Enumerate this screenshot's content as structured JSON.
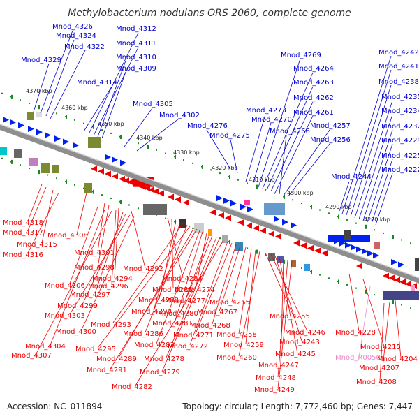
{
  "title": "Methylobacterium nodulans ORS 2060, complete genome",
  "footer": {
    "accession": "Accession: NC_011894",
    "summary": "Topology: circular; Length: 7,772,460 bp; Genes: 7,447"
  },
  "colors": {
    "forward_label": "#0000cc",
    "reverse_label": "#ee0000",
    "rna_label": "#ee88cc",
    "forward_feature": "#0022ee",
    "reverse_feature": "#ee0000",
    "backbone": "#888888",
    "tick": "#1a8a1a"
  },
  "kbp_marks": [
    "4370 kbp",
    "4360 kbp",
    "4350 kbp",
    "4340 kbp",
    "4330 kbp",
    "4320 kbp",
    "4310 kbp",
    "4300 kbp",
    "4290 kbp",
    "4280 kbp"
  ],
  "top_labels": [
    "Mnod_4326",
    "Mnod_4324",
    "Mnod_4322",
    "Mnod_4329",
    "Mnod_4312",
    "Mnod_4311",
    "Mnod_4310",
    "Mnod_4309",
    "Mnod_4314",
    "Mnod_4305",
    "Mnod_4302",
    "Mnod_4276",
    "Mnod_4275",
    "Mnod_4273",
    "Mnod_4270",
    "Mnod_4269",
    "Mnod_4264",
    "Mnod_4263",
    "Mnod_4262",
    "Mnod_4261",
    "Mnod_4266",
    "Mnod_4257",
    "Mnod_4256",
    "Mnod_4242",
    "Mnod_4241",
    "Mnod_4238",
    "Mnod_4235",
    "Mnod_4234",
    "Mnod_4232",
    "Mnod_4229",
    "Mnod_4225",
    "Mnod_4222",
    "Mnod_4244"
  ],
  "bottom_labels": [
    "Mnod_4318",
    "Mnod_4317",
    "Mnod_4315",
    "Mnod_4316",
    "Mnod_4308",
    "Mnod_4301",
    "Mnod_4298",
    "Mnod_4294",
    "Mnod_4292",
    "Mnod_4296",
    "Mnod_4306",
    "Mnod_4297",
    "Mnod_4299",
    "Mnod_4303",
    "Mnod_4300",
    "Mnod_4304",
    "Mnod_4307",
    "Mnod_4284",
    "Mnod_4285",
    "Mnod_4288",
    "Mnod_4290",
    "Mnod_4293",
    "Mnod_4286",
    "Mnod_4295",
    "Mnod_4289",
    "Mnod_4291",
    "Mnod_4283",
    "Mnod_4281",
    "Mnod_4274",
    "Mnod_4277",
    "Mnod_4280",
    "Mnod_4278",
    "Mnod_4279",
    "Mnod_4282",
    "Mnod_4272",
    "Mnod_4271",
    "Mnod_4268",
    "Mnod_4267",
    "Mnod_4265",
    "Mnod_4258",
    "Mnod_4259",
    "Mnod_4260",
    "Mnod_4255",
    "Mnod_4246",
    "Mnod_4243",
    "Mnod_4245",
    "Mnod_4247",
    "Mnod_4248",
    "Mnod_4249",
    "Mnod_4228",
    "Mnod_4215",
    "Mnod_R0050",
    "Mnod_4204",
    "Mnod_4207",
    "Mnod_4208"
  ]
}
